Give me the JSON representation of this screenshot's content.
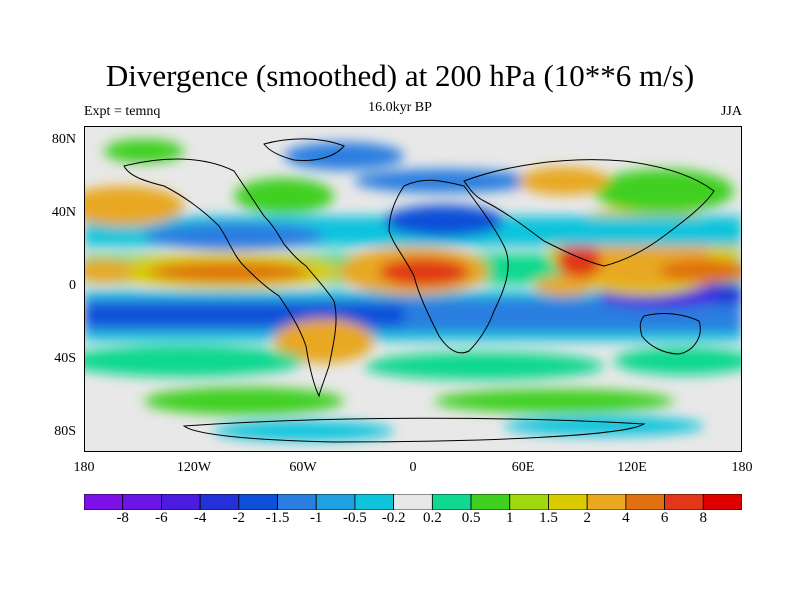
{
  "title": "Divergence (smoothed) at 200 hPa (10**6 m/s)",
  "subtitle_left": "Expt = temnq",
  "subtitle_center": "16.0kyr BP",
  "subtitle_right": "JJA",
  "y_ticks": [
    "80N",
    "40N",
    "0",
    "40S",
    "80S"
  ],
  "x_ticks": [
    "180",
    "120W",
    "60W",
    "0",
    "60E",
    "120E",
    "180"
  ],
  "colorbar": {
    "colors": [
      "#7d10e8",
      "#6a16e6",
      "#4a1ce0",
      "#2430d8",
      "#1050d8",
      "#2a7ee0",
      "#20a0e0",
      "#10c4dc",
      "#e8e8e8",
      "#10d890",
      "#40d020",
      "#a0d810",
      "#d8cc00",
      "#e8a820",
      "#e07010",
      "#e03818",
      "#e00000"
    ],
    "labels": [
      "-8",
      "-6",
      "-4",
      "-2",
      "-1.5",
      "-1",
      "-0.5",
      "-0.2",
      "0.2",
      "0.5",
      "1",
      "1.5",
      "2",
      "4",
      "6",
      "8"
    ]
  }
}
